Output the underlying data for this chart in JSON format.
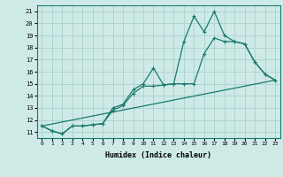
{
  "xlabel": "Humidex (Indice chaleur)",
  "x_ticks": [
    0,
    1,
    2,
    3,
    4,
    5,
    6,
    7,
    8,
    9,
    10,
    11,
    12,
    13,
    14,
    15,
    16,
    17,
    18,
    19,
    20,
    21,
    22,
    23
  ],
  "y_ticks": [
    11,
    12,
    13,
    14,
    15,
    16,
    17,
    18,
    19,
    20,
    21
  ],
  "xlim": [
    -0.5,
    23.5
  ],
  "ylim": [
    10.5,
    21.5
  ],
  "bg_color": "#ceeae7",
  "grid_color": "#b0d4d0",
  "line_color": "#1a7a6e",
  "line1_x": [
    0,
    1,
    2,
    3,
    4,
    5,
    6,
    7,
    8,
    9,
    10,
    11,
    12,
    13,
    14,
    15,
    16,
    17,
    18,
    19,
    20,
    21,
    22,
    23
  ],
  "line1_y": [
    11.5,
    11.1,
    10.85,
    11.5,
    11.5,
    11.6,
    11.7,
    13.0,
    13.3,
    14.5,
    15.0,
    16.3,
    14.9,
    15.0,
    18.5,
    20.6,
    19.3,
    21.0,
    19.0,
    18.5,
    18.3,
    16.8,
    15.8,
    15.3
  ],
  "line2_x": [
    0,
    1,
    2,
    3,
    4,
    5,
    6,
    7,
    8,
    9,
    10,
    11,
    12,
    13,
    14,
    15,
    16,
    17,
    18,
    19,
    20,
    21,
    22,
    23
  ],
  "line2_y": [
    11.5,
    11.1,
    10.85,
    11.5,
    11.5,
    11.6,
    11.7,
    12.8,
    13.2,
    14.2,
    14.8,
    14.8,
    14.9,
    15.0,
    15.0,
    15.0,
    17.5,
    18.8,
    18.5,
    18.5,
    18.3,
    16.8,
    15.8,
    15.3
  ],
  "line3_x": [
    0,
    23
  ],
  "line3_y": [
    11.5,
    15.3
  ]
}
